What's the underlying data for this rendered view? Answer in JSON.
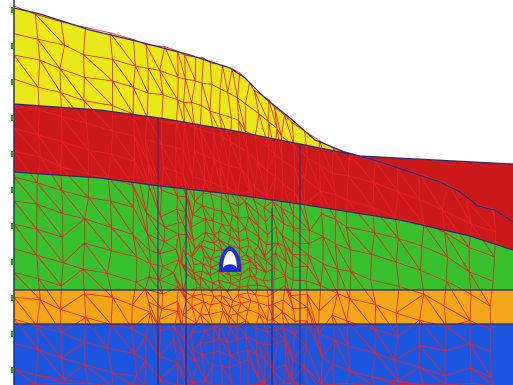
{
  "view": {
    "description_visible_text": "",
    "colors": {
      "background": "#ffffff",
      "mesh": "#e8202a",
      "boundary": "#2a2a7a",
      "axis": "#2a2a7a",
      "tick": "#2e9e2e"
    }
  },
  "layers": [
    {
      "id": "topsoil",
      "color": "#e8e81a"
    },
    {
      "id": "clay",
      "color": "#cc1a1a"
    },
    {
      "id": "silt",
      "color": "#37c12c"
    },
    {
      "id": "sand",
      "color": "#f2a71b"
    },
    {
      "id": "bedrock",
      "color": "#1a56e0"
    }
  ],
  "tunnel": {
    "outer_color": "#1a2fd6",
    "inner_color": "#ffffff"
  },
  "icons": {
    "tunnel": "tunnel-opening-icon"
  }
}
